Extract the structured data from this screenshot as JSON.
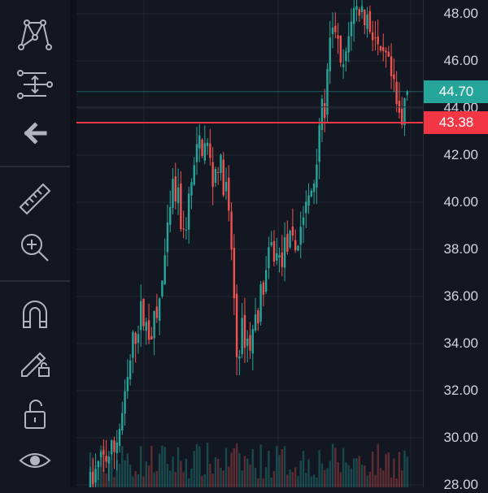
{
  "toolbar": {
    "items": [
      {
        "name": "pattern-tool-icon"
      },
      {
        "name": "long-position-tool-icon"
      },
      {
        "name": "back-arrow-icon"
      },
      {
        "name": "ruler-icon"
      },
      {
        "name": "zoom-in-icon"
      },
      {
        "name": "magnet-icon"
      },
      {
        "name": "pencil-lock-icon"
      },
      {
        "name": "lock-icon"
      },
      {
        "name": "eye-icon"
      }
    ]
  },
  "colors": {
    "background": "#131722",
    "up": "#26a69a",
    "down": "#ef5350",
    "grid": "#232735",
    "text": "#d1d4dc",
    "current_tag": "#26a69a",
    "line_tag": "#f23645"
  },
  "price_scale": {
    "ticks": [
      "48.00",
      "46.00",
      "44.00",
      "42.00",
      "40.00",
      "38.00",
      "36.00",
      "34.00",
      "32.00",
      "30.00",
      "28.00"
    ],
    "current_price": "44.70",
    "horizontal_line_price": "43.38"
  },
  "chart_data": {
    "type": "candlestick",
    "ylim": [
      27.3,
      48.6
    ],
    "horizontal_line": 43.38,
    "last_price": 44.7,
    "anchors": [
      [
        0,
        28.0
      ],
      [
        4,
        29.0
      ],
      [
        9,
        29.5
      ],
      [
        13,
        31.5
      ],
      [
        16,
        34.0
      ],
      [
        19,
        35.3
      ],
      [
        22,
        34.5
      ],
      [
        25,
        35.0
      ],
      [
        28,
        37.5
      ],
      [
        31,
        40.5
      ],
      [
        33,
        40.0
      ],
      [
        35,
        38.5
      ],
      [
        38,
        40.8
      ],
      [
        41,
        42.5
      ],
      [
        44,
        42.3
      ],
      [
        46,
        41.0
      ],
      [
        48,
        41.8
      ],
      [
        51,
        40.5
      ],
      [
        53,
        38.0
      ],
      [
        55,
        33.5
      ],
      [
        57,
        34.5
      ],
      [
        60,
        34.0
      ],
      [
        62,
        35.0
      ],
      [
        65,
        36.5
      ],
      [
        68,
        38.0
      ],
      [
        71,
        37.5
      ],
      [
        74,
        38.3
      ],
      [
        77,
        38.0
      ],
      [
        80,
        39.5
      ],
      [
        82,
        40.0
      ],
      [
        84,
        41.0
      ],
      [
        86,
        43.5
      ],
      [
        88,
        44.0
      ],
      [
        90,
        46.5
      ],
      [
        92,
        47.5
      ],
      [
        94,
        45.5
      ],
      [
        96,
        46.0
      ],
      [
        98,
        48.0
      ],
      [
        101,
        48.3
      ],
      [
        104,
        47.8
      ],
      [
        107,
        47.0
      ],
      [
        109,
        45.8
      ],
      [
        111,
        46.0
      ],
      [
        113,
        45.2
      ],
      [
        115,
        44.0
      ],
      [
        117,
        43.2
      ],
      [
        118,
        44.5
      ],
      [
        119,
        44.7
      ]
    ]
  }
}
